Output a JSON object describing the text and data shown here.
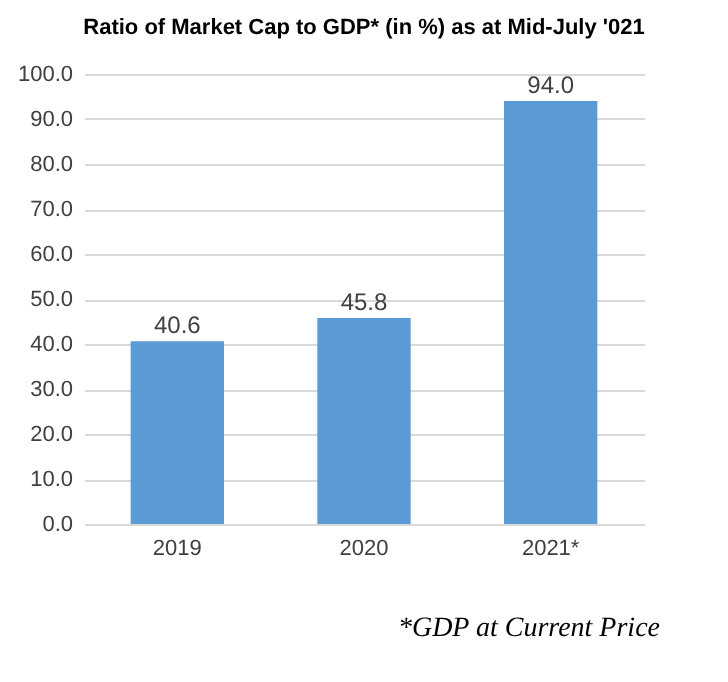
{
  "chart_data": {
    "type": "bar",
    "title": "Ratio of Market Cap to GDP* (in %) as at Mid-July '021",
    "categories": [
      "2019",
      "2020",
      "2021*"
    ],
    "values": [
      40.6,
      45.8,
      94.0
    ],
    "color": "#5b9bd5",
    "ylim": [
      0,
      100
    ],
    "yticks": [
      {
        "value": 0,
        "label": "0.0"
      },
      {
        "value": 10,
        "label": "10.0"
      },
      {
        "value": 20,
        "label": "20.0"
      },
      {
        "value": 30,
        "label": "30.0"
      },
      {
        "value": 40,
        "label": "40.0"
      },
      {
        "value": 50,
        "label": "50.0"
      },
      {
        "value": 60,
        "label": "60.0"
      },
      {
        "value": 70,
        "label": "70.0"
      },
      {
        "value": 80,
        "label": "80.0"
      },
      {
        "value": 90,
        "label": "90.0"
      },
      {
        "value": 100,
        "label": "100.0"
      }
    ],
    "grid": "y",
    "value_labels": [
      "40.6",
      "45.8",
      "94.0"
    ],
    "annotations": [
      "*GDP at Current Price"
    ]
  }
}
